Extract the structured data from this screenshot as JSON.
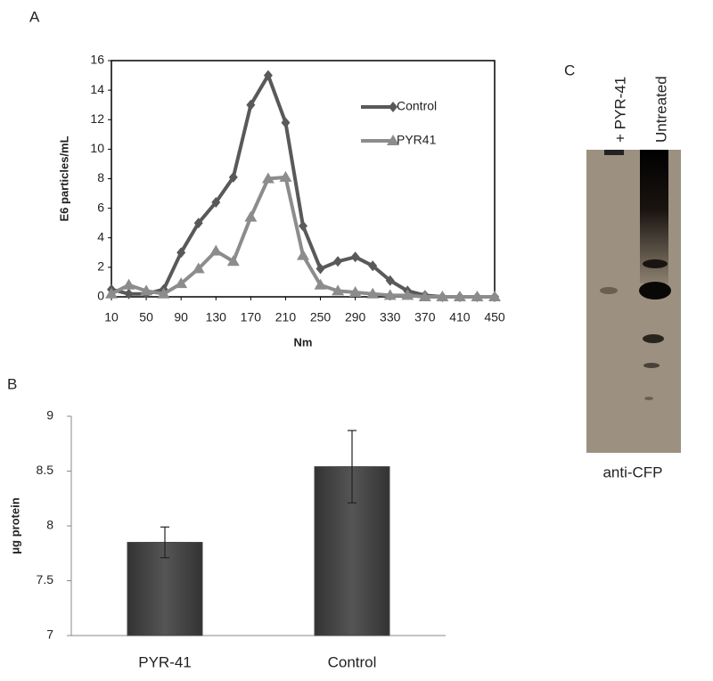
{
  "panel_labels": [
    "A",
    "B",
    "C"
  ],
  "blot": {
    "lanes": [
      "+ PYR-41",
      "Untreated"
    ],
    "label": "anti-CFP"
  },
  "chart_data": [
    {
      "type": "line",
      "xlabel": "Nm",
      "ylabel": "E6 particles/mL",
      "x": [
        10,
        30,
        50,
        70,
        90,
        110,
        130,
        150,
        170,
        190,
        210,
        230,
        250,
        270,
        290,
        310,
        330,
        350,
        370,
        390,
        410,
        430,
        450
      ],
      "series": [
        {
          "name": "Control",
          "color": "#595959",
          "marker": "diamond",
          "values": [
            0.5,
            0.2,
            0.2,
            0.5,
            3,
            5,
            6.4,
            8.1,
            13,
            15,
            11.8,
            4.8,
            1.9,
            2.4,
            2.7,
            2.1,
            1.1,
            0.4,
            0.1,
            0,
            0,
            0,
            0
          ]
        },
        {
          "name": "PYR41",
          "color": "#8c8c8c",
          "marker": "triangle",
          "values": [
            0.2,
            0.8,
            0.4,
            0.2,
            0.9,
            1.9,
            3.1,
            2.4,
            5.4,
            8,
            8.1,
            2.8,
            0.8,
            0.4,
            0.3,
            0.2,
            0.1,
            0.1,
            0,
            0,
            0,
            0,
            0
          ]
        }
      ],
      "xlim": [
        10,
        450
      ],
      "xticks": [
        10,
        50,
        90,
        130,
        170,
        210,
        250,
        290,
        330,
        370,
        410,
        450
      ],
      "ylim": [
        0,
        16
      ],
      "yticks": [
        0,
        2,
        4,
        6,
        8,
        10,
        12,
        14,
        16
      ],
      "legend": "upper right"
    },
    {
      "type": "bar",
      "ylabel": "μg protein",
      "categories": [
        "PYR-41",
        "Control"
      ],
      "values": [
        7.85,
        8.54
      ],
      "errors": [
        0.14,
        0.33
      ],
      "color": "#444444",
      "ylim": [
        7,
        9
      ],
      "yticks": [
        7,
        7.5,
        8,
        8.5,
        9
      ]
    }
  ]
}
